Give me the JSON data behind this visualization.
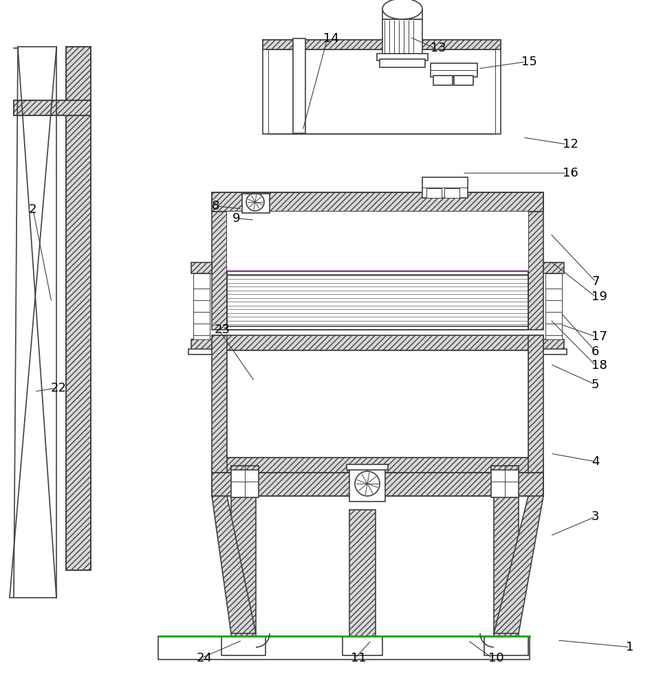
{
  "bg": "#ffffff",
  "lc": "#404040",
  "hfc": "#d8d8d8",
  "lw": 1.2,
  "lw_thick": 1.8,
  "lw_thin": 0.7,
  "label_fs": 13,
  "hatch": "////",
  "green": "#00aa00",
  "purple": "#cc88cc",
  "annotations": [
    [
      "1",
      910,
      58,
      810,
      68
    ],
    [
      "2",
      42,
      695,
      75,
      560
    ],
    [
      "3",
      860,
      248,
      800,
      220
    ],
    [
      "4",
      860,
      328,
      800,
      340
    ],
    [
      "5",
      860,
      440,
      800,
      470
    ],
    [
      "6",
      860,
      488,
      815,
      545
    ],
    [
      "7",
      860,
      590,
      800,
      660
    ],
    [
      "8",
      308,
      700,
      352,
      696
    ],
    [
      "9",
      338,
      682,
      370,
      680
    ],
    [
      "10",
      710,
      42,
      680,
      68
    ],
    [
      "11",
      510,
      42,
      540,
      68
    ],
    [
      "12",
      818,
      790,
      760,
      800
    ],
    [
      "13",
      626,
      930,
      596,
      946
    ],
    [
      "14",
      470,
      944,
      440,
      810
    ],
    [
      "15",
      758,
      910,
      695,
      900
    ],
    [
      "16",
      818,
      748,
      672,
      748
    ],
    [
      "17",
      860,
      510,
      815,
      528
    ],
    [
      "18",
      860,
      468,
      800,
      535
    ],
    [
      "19",
      860,
      568,
      800,
      620
    ],
    [
      "22",
      74,
      435,
      50,
      430
    ],
    [
      "23",
      312,
      520,
      370,
      445
    ],
    [
      "24",
      286,
      42,
      352,
      68
    ]
  ]
}
